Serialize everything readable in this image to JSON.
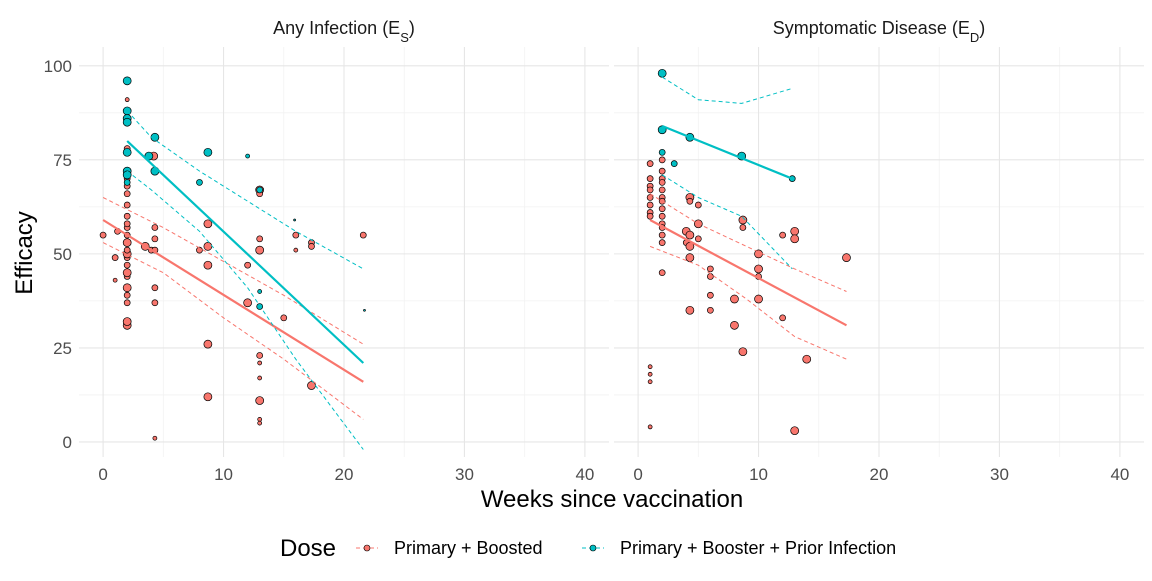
{
  "chart_data": {
    "type": "scatter",
    "ylabel": "Efficacy",
    "xlabel": "Weeks since vaccination",
    "xlim": [
      -2,
      42
    ],
    "ylim": [
      -4,
      105
    ],
    "x_ticks": [
      0,
      10,
      20,
      30,
      40
    ],
    "y_ticks": [
      0,
      25,
      50,
      75,
      100
    ],
    "grid": true,
    "legend": {
      "position": "bottom",
      "title": "Dose",
      "entries": [
        "Primary + Boosted",
        "Primary + Booster + Prior Infection"
      ]
    },
    "colors": {
      "Primary + Boosted": "#F8766D",
      "Primary + Booster + Prior Infection": "#00BFC4"
    },
    "panels": [
      {
        "title": "Any Infection (E",
        "title_sub": "S",
        "title_close": ")",
        "series": [
          {
            "name": "Primary + Boosted",
            "points": [
              [
                0,
                55,
                3
              ],
              [
                1,
                49,
                3
              ],
              [
                1,
                43,
                2
              ],
              [
                1.2,
                56,
                3
              ],
              [
                2,
                31,
                4
              ],
              [
                2,
                32,
                4
              ],
              [
                2,
                37,
                3
              ],
              [
                2,
                39,
                3
              ],
              [
                2,
                41,
                4
              ],
              [
                2,
                44,
                3
              ],
              [
                2,
                45,
                4
              ],
              [
                2,
                47,
                3
              ],
              [
                2,
                49,
                3
              ],
              [
                2,
                50,
                4
              ],
              [
                2,
                51,
                3
              ],
              [
                2,
                53,
                4
              ],
              [
                2,
                55,
                3
              ],
              [
                2,
                57,
                3
              ],
              [
                2,
                58,
                3
              ],
              [
                2,
                60,
                3
              ],
              [
                2,
                63,
                3
              ],
              [
                2,
                66,
                3
              ],
              [
                2,
                68,
                3
              ],
              [
                2,
                70,
                3
              ],
              [
                2,
                78,
                3
              ],
              [
                2,
                88,
                2
              ],
              [
                2,
                91,
                2
              ],
              [
                3.5,
                52,
                4
              ],
              [
                4,
                51,
                3
              ],
              [
                4.2,
                76,
                4
              ],
              [
                4.3,
                37,
                3
              ],
              [
                4.3,
                41,
                3
              ],
              [
                4.3,
                51,
                3
              ],
              [
                4.3,
                54,
                3
              ],
              [
                4.3,
                57,
                3
              ],
              [
                4.3,
                1,
                2
              ],
              [
                8,
                51,
                3
              ],
              [
                8.7,
                58,
                4
              ],
              [
                8.7,
                47,
                4
              ],
              [
                8.7,
                26,
                4
              ],
              [
                8.7,
                12,
                4
              ],
              [
                8.7,
                52,
                4
              ],
              [
                12,
                37,
                4
              ],
              [
                12,
                47,
                3
              ],
              [
                13,
                67,
                4
              ],
              [
                13,
                66,
                3
              ],
              [
                13,
                54,
                3
              ],
              [
                13,
                51,
                4
              ],
              [
                13,
                23,
                3
              ],
              [
                13,
                21,
                2
              ],
              [
                13,
                17,
                2
              ],
              [
                13,
                11,
                4
              ],
              [
                13,
                6,
                2
              ],
              [
                13,
                5,
                2
              ],
              [
                15,
                33,
                3
              ],
              [
                16,
                55,
                3
              ],
              [
                16,
                51,
                2
              ],
              [
                17.3,
                53,
                3
              ],
              [
                17.3,
                52,
                3
              ],
              [
                17.3,
                15,
                4
              ],
              [
                21.6,
                55,
                3
              ]
            ],
            "fit": [
              [
                0,
                59
              ],
              [
                21.6,
                16
              ]
            ],
            "ci_upper": [
              [
                0,
                65
              ],
              [
                5,
                57
              ],
              [
                10,
                48
              ],
              [
                15,
                39
              ],
              [
                21.6,
                26
              ]
            ],
            "ci_lower": [
              [
                0,
                53
              ],
              [
                5,
                45
              ],
              [
                10,
                33
              ],
              [
                15,
                22
              ],
              [
                21.6,
                6
              ]
            ]
          },
          {
            "name": "Primary + Booster + Prior Infection",
            "points": [
              [
                2,
                96,
                4
              ],
              [
                2,
                88,
                4
              ],
              [
                2,
                86,
                4
              ],
              [
                2,
                85,
                4
              ],
              [
                2,
                77,
                4
              ],
              [
                2,
                72,
                4
              ],
              [
                2,
                71,
                4
              ],
              [
                2,
                69,
                3
              ],
              [
                3.8,
                76,
                4
              ],
              [
                4.3,
                81,
                4
              ],
              [
                4.3,
                72,
                4
              ],
              [
                8,
                69,
                3
              ],
              [
                8.7,
                77,
                4
              ],
              [
                12,
                76,
                2
              ],
              [
                13,
                67,
                3
              ],
              [
                13,
                40,
                2
              ],
              [
                13,
                36,
                3
              ],
              [
                15.9,
                59,
                1
              ],
              [
                21.7,
                35,
                1
              ]
            ],
            "fit": [
              [
                2,
                80
              ],
              [
                21.6,
                21
              ]
            ],
            "ci_upper": [
              [
                2,
                88
              ],
              [
                4,
                81
              ],
              [
                8,
                72
              ],
              [
                12,
                64
              ],
              [
                16,
                56
              ],
              [
                21.6,
                46
              ]
            ],
            "ci_lower": [
              [
                2,
                72
              ],
              [
                4,
                67
              ],
              [
                8,
                56
              ],
              [
                12,
                41
              ],
              [
                16,
                22
              ],
              [
                21.6,
                -2
              ]
            ]
          }
        ]
      },
      {
        "title": "Symptomatic Disease (E",
        "title_sub": "D",
        "title_close": ")",
        "series": [
          {
            "name": "Primary + Boosted",
            "points": [
              [
                1,
                74,
                3
              ],
              [
                1,
                70,
                3
              ],
              [
                1,
                68,
                3
              ],
              [
                1,
                67,
                3
              ],
              [
                1,
                65,
                3
              ],
              [
                1,
                63,
                3
              ],
              [
                1,
                61,
                3
              ],
              [
                1,
                60,
                3
              ],
              [
                1,
                20,
                2
              ],
              [
                1,
                18,
                2
              ],
              [
                1,
                16,
                2
              ],
              [
                1,
                4,
                2
              ],
              [
                2,
                75,
                3
              ],
              [
                2,
                72,
                3
              ],
              [
                2,
                70,
                3
              ],
              [
                2,
                69,
                3
              ],
              [
                2,
                67,
                3
              ],
              [
                2,
                65,
                3
              ],
              [
                2,
                64,
                3
              ],
              [
                2,
                62,
                3
              ],
              [
                2,
                60,
                3
              ],
              [
                2,
                58,
                3
              ],
              [
                2,
                57,
                3
              ],
              [
                2,
                55,
                3
              ],
              [
                2,
                53,
                3
              ],
              [
                2,
                45,
                3
              ],
              [
                4,
                56,
                4
              ],
              [
                4,
                53,
                3
              ],
              [
                4.3,
                65,
                4
              ],
              [
                4.3,
                64,
                3
              ],
              [
                4.3,
                55,
                4
              ],
              [
                4.3,
                52,
                4
              ],
              [
                4.3,
                49,
                4
              ],
              [
                4.3,
                35,
                4
              ],
              [
                5,
                63,
                3
              ],
              [
                5,
                58,
                4
              ],
              [
                5,
                54,
                3
              ],
              [
                6,
                46,
                3
              ],
              [
                6,
                44,
                3
              ],
              [
                6,
                39,
                3
              ],
              [
                6,
                35,
                3
              ],
              [
                8,
                38,
                4
              ],
              [
                8,
                31,
                4
              ],
              [
                8.7,
                59,
                4
              ],
              [
                8.7,
                57,
                3
              ],
              [
                8.7,
                24,
                4
              ],
              [
                10,
                50,
                4
              ],
              [
                10,
                46,
                4
              ],
              [
                10,
                44,
                3
              ],
              [
                10,
                38,
                4
              ],
              [
                12,
                55,
                3
              ],
              [
                12,
                33,
                3
              ],
              [
                13,
                56,
                4
              ],
              [
                13,
                54,
                4
              ],
              [
                13,
                3,
                4
              ],
              [
                14,
                22,
                4
              ],
              [
                17.3,
                49,
                4
              ]
            ],
            "fit": [
              [
                1,
                59
              ],
              [
                17.3,
                31
              ]
            ],
            "ci_upper": [
              [
                1,
                66
              ],
              [
                5,
                58
              ],
              [
                9,
                52
              ],
              [
                13,
                46
              ],
              [
                17.3,
                40
              ]
            ],
            "ci_lower": [
              [
                1,
                52
              ],
              [
                5,
                47
              ],
              [
                9,
                38
              ],
              [
                13,
                28
              ],
              [
                17.3,
                22
              ]
            ]
          },
          {
            "name": "Primary + Booster + Prior Infection",
            "points": [
              [
                2,
                98,
                4
              ],
              [
                2,
                83,
                4
              ],
              [
                2,
                77,
                3
              ],
              [
                3,
                74,
                3
              ],
              [
                4.3,
                81,
                4
              ],
              [
                8.6,
                76,
                4
              ],
              [
                12.8,
                70,
                3
              ]
            ],
            "fit": [
              [
                2,
                84
              ],
              [
                12.8,
                70
              ]
            ],
            "ci_upper": [
              [
                2,
                97
              ],
              [
                5,
                91
              ],
              [
                8.6,
                90
              ],
              [
                12.8,
                94
              ]
            ],
            "ci_lower": [
              [
                2,
                71
              ],
              [
                5,
                65
              ],
              [
                8.6,
                60
              ],
              [
                12.8,
                46
              ]
            ]
          }
        ]
      }
    ]
  }
}
